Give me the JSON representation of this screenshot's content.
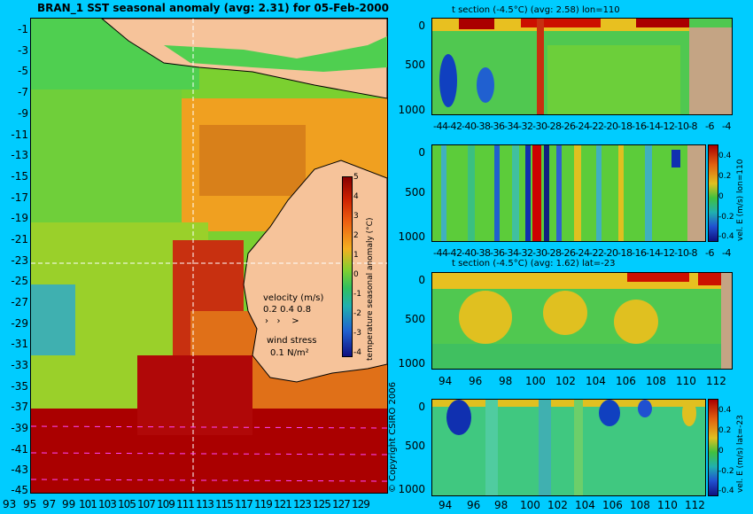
{
  "map": {
    "title": "BRAN_1  SST seasonal anomaly (avg: 2.31) for 05-Feb-2000",
    "lat_ticks": [
      "-1",
      "-3",
      "-5",
      "-7",
      "-9",
      "-11",
      "-13",
      "-15",
      "-17",
      "-19",
      "-21",
      "-23",
      "-25",
      "-27",
      "-29",
      "-31",
      "-33",
      "-35",
      "-37",
      "-39",
      "-41",
      "-43",
      "-45"
    ],
    "lon_ticks": [
      "93",
      "95",
      "97",
      "99",
      "101",
      "103",
      "105",
      "107",
      "109",
      "111",
      "113",
      "115",
      "117",
      "119",
      "121",
      "123",
      "125",
      "127",
      "129"
    ],
    "colorbar_ticks": [
      "5",
      "4",
      "3",
      "2",
      "1",
      "0",
      "-1",
      "-2",
      "-3",
      "-4"
    ],
    "colorbar_label": "temperature seasonal anomaly (°C)",
    "velocity_label": "velocity (m/s)",
    "velocity_scale": "0.2 0.4 0.8",
    "wind_label": "wind stress",
    "wind_scale": "0.1 N/m²",
    "copyright": "© Copyright CSIRO 2006"
  },
  "panel1": {
    "title": "t section (-4.5°C) (avg: 2.58) lon=110",
    "y_ticks": [
      "0",
      "500",
      "1000"
    ],
    "x_ticks": [
      "-44",
      "-42",
      "-40",
      "-38",
      "-36",
      "-34",
      "-32",
      "-30",
      "-28",
      "-26",
      "-24",
      "-22",
      "-20",
      "-18",
      "-16",
      "-14",
      "-12",
      "-10",
      "-8",
      "-6",
      "-4"
    ]
  },
  "panel2": {
    "y_ticks": [
      "0",
      "500",
      "1000"
    ],
    "x_ticks": [
      "-44",
      "-42",
      "-40",
      "-38",
      "-36",
      "-34",
      "-32",
      "-30",
      "-28",
      "-26",
      "-24",
      "-22",
      "-20",
      "-18",
      "-16",
      "-14",
      "-12",
      "-10",
      "-8",
      "-6",
      "-4"
    ],
    "cbar_ticks": [
      "0.4",
      "0.2",
      "0",
      "-0.2",
      "-0.4"
    ],
    "cbar_label": "vel. E (m/s) lon=110"
  },
  "panel3": {
    "title": "t section (-4.5°C) (avg: 1.62) lat=-23",
    "y_ticks": [
      "0",
      "500",
      "1000"
    ],
    "x_ticks": [
      "94",
      "96",
      "98",
      "100",
      "102",
      "104",
      "106",
      "108",
      "110",
      "112"
    ]
  },
  "panel4": {
    "y_ticks": [
      "0",
      "500",
      "1000"
    ],
    "x_ticks": [
      "94",
      "96",
      "98",
      "100",
      "102",
      "104",
      "106",
      "108",
      "110",
      "112"
    ],
    "cbar_ticks": [
      "0.4",
      "0.2",
      "0",
      "-0.2",
      "-0.4"
    ],
    "cbar_label": "vel. E (m/s) lat=-23"
  },
  "colors": {
    "background": "#00ccff",
    "land": "#f6c39a",
    "hot": "#aa0000",
    "warm": "#ee9a1a",
    "neutral": "#7bd030",
    "cool": "#3fcf3f",
    "cold": "#1030b0",
    "seabed": "#c4a484"
  }
}
